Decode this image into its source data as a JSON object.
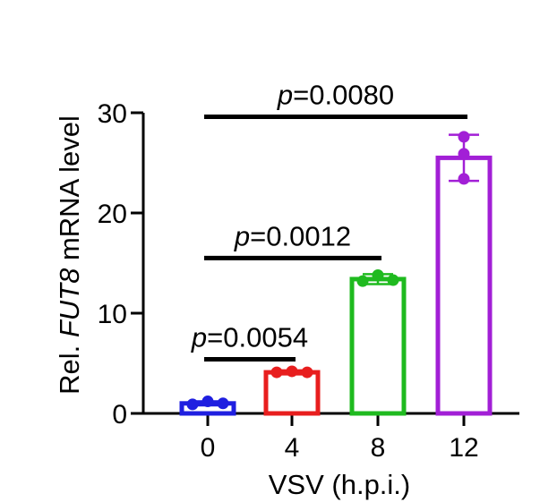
{
  "chart_data": {
    "type": "bar",
    "xlabel": "VSV (h.p.i.)",
    "ylabel": {
      "prefix": "Rel. ",
      "gene": "FUT8",
      "suffix": " mRNA level"
    },
    "ylim": [
      0,
      30
    ],
    "yticks": [
      0,
      10,
      20,
      30
    ],
    "categories": [
      "0",
      "4",
      "8",
      "12"
    ],
    "values": [
      1.0,
      4.1,
      13.4,
      25.5
    ],
    "errors": [
      0.2,
      0.2,
      0.5,
      2.3
    ],
    "points": [
      [
        0.9,
        1.2,
        1.0
      ],
      [
        4.1,
        4.2,
        4.1
      ],
      [
        13.2,
        13.8,
        13.3
      ],
      [
        27.6,
        25.9,
        23.4
      ]
    ],
    "colors": [
      "#1f1fe0",
      "#e81e1e",
      "#1fba1f",
      "#a21fd6"
    ],
    "comparisons": [
      {
        "from": 0,
        "to": 1,
        "y": 5.4,
        "label": "p=0.0054"
      },
      {
        "from": 0,
        "to": 2,
        "y": 15.5,
        "label": "p=0.0012"
      },
      {
        "from": 0,
        "to": 3,
        "y": 29.6,
        "label": "p=0.0080"
      }
    ]
  }
}
